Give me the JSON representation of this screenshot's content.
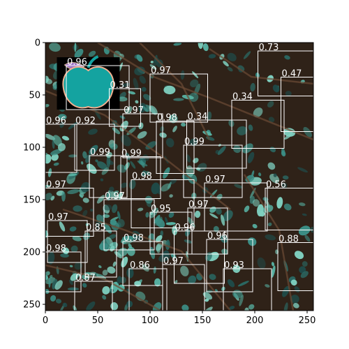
{
  "chart_data": {
    "type": "image-with-detections",
    "x_ticks": [
      "0",
      "50",
      "100",
      "150",
      "200",
      "250"
    ],
    "y_ticks": [
      "0",
      "50",
      "100",
      "150",
      "200",
      "250"
    ],
    "x_tick_values": [
      0,
      50,
      100,
      150,
      200,
      250
    ],
    "y_tick_values": [
      0,
      50,
      100,
      150,
      200,
      250
    ],
    "xlim": [
      0,
      256
    ],
    "ylim": [
      0,
      256
    ],
    "box_color": "#ffffff",
    "label_color": "#ffffff",
    "background_color": "#2f2218",
    "foliage_colors": [
      "#1f4a48",
      "#2a6b66",
      "#3c8f86",
      "#58b3a4",
      "#7fd0c0"
    ],
    "apple_color": "#14a3a0",
    "apple_outline": "#f0b090",
    "detections": [
      {
        "score": "0.96",
        "x": 20,
        "y": 22,
        "w": 60,
        "h": 42
      },
      {
        "score": "0.73",
        "x": 203,
        "y": 8,
        "w": 53,
        "h": 43
      },
      {
        "score": "0.47",
        "x": 225,
        "y": 33,
        "w": 31,
        "h": 52
      },
      {
        "score": "0.97",
        "x": 100,
        "y": 30,
        "w": 55,
        "h": 46
      },
      {
        "score": "0.31",
        "x": 61,
        "y": 44,
        "w": 30,
        "h": 36
      },
      {
        "score": "0.34",
        "x": 178,
        "y": 55,
        "w": 50,
        "h": 46
      },
      {
        "score": "0.97",
        "x": 74,
        "y": 68,
        "w": 38,
        "h": 42
      },
      {
        "score": "0.98",
        "x": 106,
        "y": 75,
        "w": 36,
        "h": 50
      },
      {
        "score": "0.34",
        "x": 135,
        "y": 74,
        "w": 57,
        "h": 46
      },
      {
        "score": "0.96",
        "x": 0,
        "y": 78,
        "w": 30,
        "h": 46
      },
      {
        "score": "0.92",
        "x": 28,
        "y": 78,
        "w": 38,
        "h": 44
      },
      {
        "score": "0.99",
        "x": 132,
        "y": 98,
        "w": 56,
        "h": 50
      },
      {
        "score": "0.99",
        "x": 42,
        "y": 108,
        "w": 36,
        "h": 40
      },
      {
        "score": "0.99",
        "x": 72,
        "y": 109,
        "w": 38,
        "h": 40
      },
      {
        "score": "0.98",
        "x": 82,
        "y": 131,
        "w": 60,
        "h": 46
      },
      {
        "score": "0.97",
        "x": 152,
        "y": 134,
        "w": 60,
        "h": 46
      },
      {
        "score": "0.97",
        "x": 0,
        "y": 139,
        "w": 46,
        "h": 46
      },
      {
        "score": "0.56",
        "x": 210,
        "y": 139,
        "w": 46,
        "h": 40
      },
      {
        "score": "0.97",
        "x": 56,
        "y": 150,
        "w": 48,
        "h": 48
      },
      {
        "score": "0.97",
        "x": 136,
        "y": 158,
        "w": 38,
        "h": 44
      },
      {
        "score": "0.95",
        "x": 100,
        "y": 162,
        "w": 40,
        "h": 40
      },
      {
        "score": "0.97",
        "x": 2,
        "y": 170,
        "w": 38,
        "h": 40
      },
      {
        "score": "0.85",
        "x": 38,
        "y": 180,
        "w": 30,
        "h": 44
      },
      {
        "score": "0.96",
        "x": 123,
        "y": 180,
        "w": 48,
        "h": 50
      },
      {
        "score": "0.98",
        "x": 74,
        "y": 190,
        "w": 38,
        "h": 42
      },
      {
        "score": "0.96",
        "x": 154,
        "y": 188,
        "w": 44,
        "h": 50
      },
      {
        "score": "0.88",
        "x": 222,
        "y": 191,
        "w": 34,
        "h": 46
      },
      {
        "score": "0.98",
        "x": 0,
        "y": 200,
        "w": 34,
        "h": 38
      },
      {
        "score": "0.86",
        "x": 80,
        "y": 216,
        "w": 36,
        "h": 42
      },
      {
        "score": "0.97",
        "x": 112,
        "y": 212,
        "w": 40,
        "h": 44
      },
      {
        "score": "0.93",
        "x": 170,
        "y": 216,
        "w": 46,
        "h": 40
      },
      {
        "score": "0.87",
        "x": 28,
        "y": 228,
        "w": 36,
        "h": 28
      }
    ]
  }
}
